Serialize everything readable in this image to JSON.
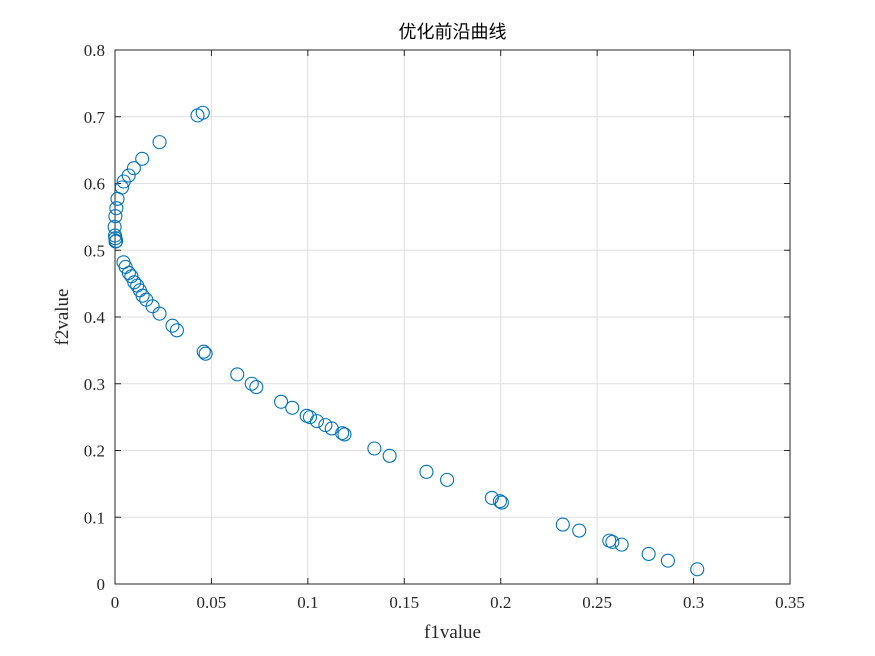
{
  "chart_data": {
    "type": "scatter",
    "title": "优化前沿曲线",
    "xlabel": "f1value",
    "ylabel": "f2value",
    "xlim": [
      0,
      0.35
    ],
    "ylim": [
      0,
      0.8
    ],
    "xticks": [
      "0",
      "0.05",
      "0.1",
      "0.15",
      "0.2",
      "0.25",
      "0.3",
      "0.35"
    ],
    "yticks": [
      "0",
      "0.1",
      "0.2",
      "0.3",
      "0.4",
      "0.5",
      "0.6",
      "0.7",
      "0.8"
    ],
    "grid": true,
    "marker": "circle",
    "color": "#0072BD",
    "points": [
      {
        "x": 0.0428,
        "y": 0.702
      },
      {
        "x": 0.0455,
        "y": 0.706
      },
      {
        "x": 0.0231,
        "y": 0.662
      },
      {
        "x": 0.0141,
        "y": 0.637
      },
      {
        "x": 0.0098,
        "y": 0.623
      },
      {
        "x": 0.0071,
        "y": 0.612
      },
      {
        "x": 0.0045,
        "y": 0.603
      },
      {
        "x": 0.0036,
        "y": 0.594
      },
      {
        "x": 0.0013,
        "y": 0.577
      },
      {
        "x": 0.0007,
        "y": 0.563
      },
      {
        "x": 0.0002,
        "y": 0.551
      },
      {
        "x": -0.0002,
        "y": 0.535
      },
      {
        "x": 0.0,
        "y": 0.522
      },
      {
        "x": 0.0002,
        "y": 0.518
      },
      {
        "x": 0.0003,
        "y": 0.513
      },
      {
        "x": 0.0006,
        "y": 0.514
      },
      {
        "x": 0.0044,
        "y": 0.482
      },
      {
        "x": 0.0055,
        "y": 0.475
      },
      {
        "x": 0.0072,
        "y": 0.466
      },
      {
        "x": 0.0085,
        "y": 0.461
      },
      {
        "x": 0.01,
        "y": 0.452
      },
      {
        "x": 0.0115,
        "y": 0.447
      },
      {
        "x": 0.0129,
        "y": 0.44
      },
      {
        "x": 0.0143,
        "y": 0.432
      },
      {
        "x": 0.0162,
        "y": 0.426
      },
      {
        "x": 0.0195,
        "y": 0.416
      },
      {
        "x": 0.0231,
        "y": 0.405
      },
      {
        "x": 0.0298,
        "y": 0.387
      },
      {
        "x": 0.0321,
        "y": 0.38
      },
      {
        "x": 0.046,
        "y": 0.348
      },
      {
        "x": 0.047,
        "y": 0.345
      },
      {
        "x": 0.0634,
        "y": 0.314
      },
      {
        "x": 0.0709,
        "y": 0.3
      },
      {
        "x": 0.0733,
        "y": 0.295
      },
      {
        "x": 0.0861,
        "y": 0.273
      },
      {
        "x": 0.0919,
        "y": 0.264
      },
      {
        "x": 0.0994,
        "y": 0.252
      },
      {
        "x": 0.1011,
        "y": 0.25
      },
      {
        "x": 0.1047,
        "y": 0.244
      },
      {
        "x": 0.1091,
        "y": 0.238
      },
      {
        "x": 0.1124,
        "y": 0.233
      },
      {
        "x": 0.1178,
        "y": 0.226
      },
      {
        "x": 0.119,
        "y": 0.224
      },
      {
        "x": 0.1345,
        "y": 0.203
      },
      {
        "x": 0.1424,
        "y": 0.192
      },
      {
        "x": 0.1615,
        "y": 0.168
      },
      {
        "x": 0.1722,
        "y": 0.156
      },
      {
        "x": 0.1954,
        "y": 0.129
      },
      {
        "x": 0.1996,
        "y": 0.124
      },
      {
        "x": 0.2006,
        "y": 0.122
      },
      {
        "x": 0.2322,
        "y": 0.089
      },
      {
        "x": 0.2407,
        "y": 0.08
      },
      {
        "x": 0.2563,
        "y": 0.065
      },
      {
        "x": 0.2579,
        "y": 0.063
      },
      {
        "x": 0.2627,
        "y": 0.059
      },
      {
        "x": 0.2767,
        "y": 0.045
      },
      {
        "x": 0.2867,
        "y": 0.035
      },
      {
        "x": 0.3019,
        "y": 0.022
      }
    ]
  }
}
